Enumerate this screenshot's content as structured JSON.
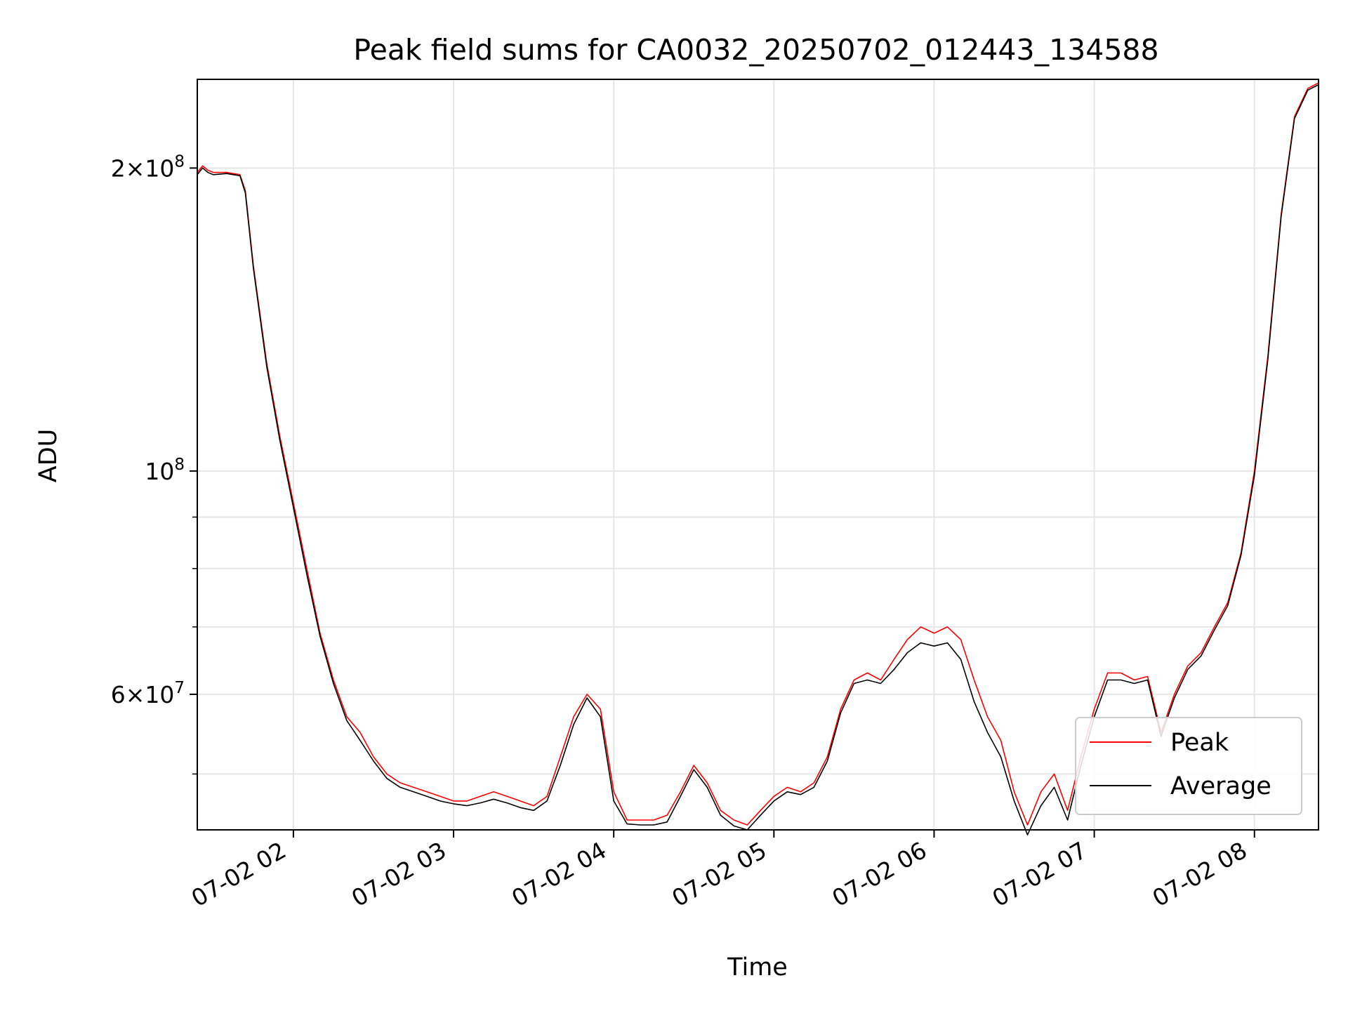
{
  "chart_data": {
    "type": "line",
    "title": "Peak field sums for CA0032_20250702_012443_134588",
    "xlabel": "Time",
    "ylabel": "ADU",
    "yscale": "log",
    "xlim": [
      "07-02 01:24",
      "07-02 08:24"
    ],
    "ylim": [
      44000000,
      245000000
    ],
    "grid": true,
    "legend_position": "lower right",
    "x_ticks": [
      "07-02 02",
      "07-02 03",
      "07-02 04",
      "07-02 05",
      "07-02 06",
      "07-02 07",
      "07-02 08"
    ],
    "y_ticks": [
      {
        "value": 200000000,
        "base": "2×10",
        "exp": "8"
      },
      {
        "value": 100000000,
        "base": "10",
        "exp": "8"
      },
      {
        "value": 60000000,
        "base": "6×10",
        "exp": "7"
      }
    ],
    "y_minor_ticks": [
      50000000,
      70000000,
      80000000,
      90000000
    ],
    "series": [
      {
        "name": "Peak",
        "color": "#ff0000",
        "x": [
          "01:24",
          "01:26",
          "01:28",
          "01:30",
          "01:35",
          "01:40",
          "01:42",
          "01:45",
          "01:50",
          "01:55",
          "02:00",
          "02:05",
          "02:10",
          "02:15",
          "02:20",
          "02:25",
          "02:30",
          "02:35",
          "02:40",
          "02:45",
          "02:50",
          "02:55",
          "03:00",
          "03:05",
          "03:10",
          "03:15",
          "03:20",
          "03:25",
          "03:30",
          "03:35",
          "03:40",
          "03:45",
          "03:50",
          "03:55",
          "04:00",
          "04:05",
          "04:10",
          "04:15",
          "04:20",
          "04:25",
          "04:30",
          "04:35",
          "04:40",
          "04:45",
          "04:50",
          "04:55",
          "05:00",
          "05:05",
          "05:10",
          "05:15",
          "05:20",
          "05:25",
          "05:30",
          "05:35",
          "05:40",
          "05:45",
          "05:50",
          "05:55",
          "06:00",
          "06:05",
          "06:10",
          "06:15",
          "06:20",
          "06:25",
          "06:30",
          "06:35",
          "06:40",
          "06:45",
          "06:50",
          "06:55",
          "07:00",
          "07:05",
          "07:10",
          "07:15",
          "07:20",
          "07:25",
          "07:30",
          "07:35",
          "07:40",
          "07:45",
          "07:50",
          "07:55",
          "08:00",
          "08:05",
          "08:10",
          "08:15",
          "08:20",
          "08:24"
        ],
        "y": [
          198000000,
          201000000,
          199000000,
          198000000,
          198000000,
          197000000,
          190000000,
          160000000,
          128000000,
          108000000,
          93000000,
          80000000,
          69000000,
          62000000,
          57000000,
          55000000,
          52000000,
          50000000,
          49000000,
          48500000,
          48000000,
          47500000,
          47000000,
          47000000,
          47500000,
          48000000,
          47500000,
          47000000,
          46500000,
          47500000,
          52000000,
          57000000,
          60000000,
          58000000,
          48000000,
          45000000,
          45000000,
          45000000,
          45500000,
          48000000,
          51000000,
          49000000,
          46000000,
          45000000,
          44500000,
          46000000,
          47500000,
          48500000,
          48000000,
          49000000,
          52000000,
          58000000,
          62000000,
          63000000,
          62000000,
          65000000,
          68000000,
          70000000,
          69000000,
          70000000,
          68000000,
          62000000,
          57000000,
          54000000,
          48000000,
          44500000,
          48000000,
          50000000,
          46000000,
          52000000,
          58000000,
          63000000,
          63000000,
          62000000,
          62500000,
          55000000,
          60000000,
          64000000,
          66000000,
          70000000,
          74000000,
          83000000,
          100000000,
          130000000,
          180000000,
          225000000,
          240000000,
          243000000
        ]
      },
      {
        "name": "Average",
        "color": "#000000",
        "x": [
          "01:24",
          "01:26",
          "01:28",
          "01:30",
          "01:35",
          "01:40",
          "01:42",
          "01:45",
          "01:50",
          "01:55",
          "02:00",
          "02:05",
          "02:10",
          "02:15",
          "02:20",
          "02:25",
          "02:30",
          "02:35",
          "02:40",
          "02:45",
          "02:50",
          "02:55",
          "03:00",
          "03:05",
          "03:10",
          "03:15",
          "03:20",
          "03:25",
          "03:30",
          "03:35",
          "03:40",
          "03:45",
          "03:50",
          "03:55",
          "04:00",
          "04:05",
          "04:10",
          "04:15",
          "04:20",
          "04:25",
          "04:30",
          "04:35",
          "04:40",
          "04:45",
          "04:50",
          "04:55",
          "05:00",
          "05:05",
          "05:10",
          "05:15",
          "05:20",
          "05:25",
          "05:30",
          "05:35",
          "05:40",
          "05:45",
          "05:50",
          "05:55",
          "06:00",
          "06:05",
          "06:10",
          "06:15",
          "06:20",
          "06:25",
          "06:30",
          "06:35",
          "06:40",
          "06:45",
          "06:50",
          "06:55",
          "07:00",
          "07:05",
          "07:10",
          "07:15",
          "07:20",
          "07:25",
          "07:30",
          "07:35",
          "07:40",
          "07:45",
          "07:50",
          "07:55",
          "08:00",
          "08:05",
          "08:10",
          "08:15",
          "08:20",
          "08:24"
        ],
        "y": [
          197000000,
          200000000,
          198000000,
          197000000,
          197500000,
          196500000,
          189000000,
          159000000,
          127000000,
          107000000,
          92000000,
          79000000,
          68500000,
          61500000,
          56500000,
          54000000,
          51500000,
          49500000,
          48500000,
          48000000,
          47500000,
          47000000,
          46700000,
          46500000,
          46800000,
          47200000,
          46800000,
          46300000,
          46000000,
          47000000,
          51000000,
          56000000,
          59500000,
          57000000,
          47000000,
          44600000,
          44500000,
          44500000,
          44800000,
          47500000,
          50500000,
          48500000,
          45500000,
          44400000,
          44000000,
          45500000,
          47000000,
          48000000,
          47700000,
          48500000,
          51500000,
          57500000,
          61500000,
          62000000,
          61500000,
          63500000,
          66000000,
          67500000,
          67000000,
          67500000,
          65000000,
          59000000,
          55000000,
          52000000,
          47000000,
          43500000,
          46500000,
          48500000,
          45000000,
          51000000,
          57000000,
          62000000,
          62000000,
          61500000,
          62000000,
          54500000,
          59500000,
          63500000,
          65500000,
          69500000,
          73500000,
          82500000,
          99000000,
          129000000,
          179000000,
          224000000,
          239000000,
          242000000
        ]
      }
    ]
  }
}
